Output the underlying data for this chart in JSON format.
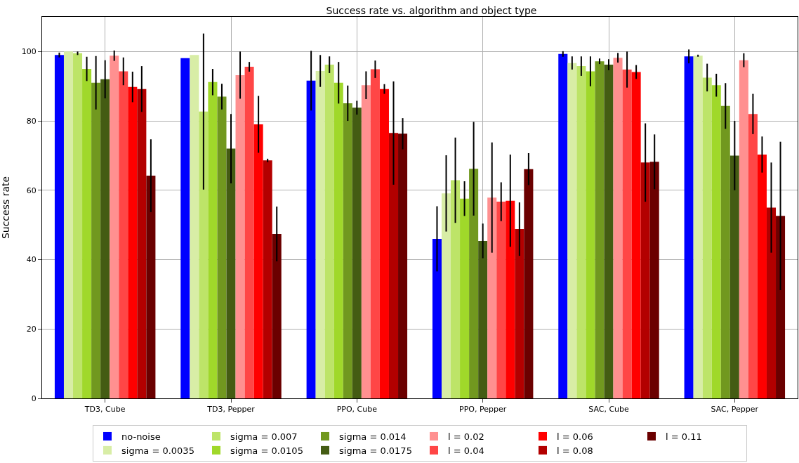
{
  "chart_data": {
    "type": "bar",
    "title": "Success rate vs. algorithm and object type",
    "ylabel": "Success rate",
    "categories": [
      "TD3, Cube",
      "TD3, Pepper",
      "PPO, Cube",
      "PPO, Pepper",
      "SAC, Cube",
      "SAC, Pepper"
    ],
    "ylim": [
      0,
      110
    ],
    "yticks": [
      0,
      20,
      40,
      60,
      80,
      100
    ],
    "grid": true,
    "legend": "bottom",
    "series": [
      {
        "name": "no-noise",
        "color": "#0000ff",
        "values": [
          99,
          98.1,
          91.6,
          46,
          99.3,
          98.6
        ],
        "errors": [
          0.7,
          0,
          8.6,
          9.4,
          0.8,
          2
        ]
      },
      {
        "name": "sigma = 0.0035",
        "color": "#d8eda6",
        "values": [
          100,
          99,
          94.4,
          59.1,
          96.7,
          98.8
        ],
        "errors": [
          0,
          0,
          4.6,
          11,
          1.9,
          0.3
        ]
      },
      {
        "name": "sigma = 0.007",
        "color": "#bde468",
        "values": [
          99.5,
          82.7,
          96.2,
          62.9,
          95.8,
          92.5
        ],
        "errors": [
          0.5,
          22.5,
          2.4,
          12.3,
          2.8,
          4
        ]
      },
      {
        "name": "sigma = 0.0105",
        "color": "#a0d82a",
        "values": [
          95,
          91.2,
          91,
          57.6,
          94.3,
          90.3
        ],
        "errors": [
          3.5,
          3.8,
          6,
          5,
          4.3,
          3.3
        ]
      },
      {
        "name": "sigma = 0.014",
        "color": "#71981f",
        "values": [
          91,
          87,
          85.1,
          66.2,
          97.2,
          84.3
        ],
        "errors": [
          7.7,
          3.7,
          5.1,
          13.5,
          0.8,
          6.6
        ]
      },
      {
        "name": "sigma = 0.0175",
        "color": "#445c13",
        "values": [
          92,
          72,
          83.8,
          45.4,
          96.2,
          70
        ],
        "errors": [
          5.5,
          10,
          2,
          5,
          1.6,
          10
        ]
      },
      {
        "name": "l = 0.02",
        "color": "#ff9090",
        "values": [
          98.8,
          93.2,
          90.3,
          57.9,
          98.2,
          97.5
        ],
        "errors": [
          1.5,
          6.8,
          4,
          15.9,
          1.4,
          2
        ]
      },
      {
        "name": "l = 0.04",
        "color": "#ff4646",
        "values": [
          94.3,
          95.6,
          94.9,
          56.7,
          94.8,
          82
        ],
        "errors": [
          4,
          1.4,
          2.5,
          5.6,
          5.2,
          5.8
        ]
      },
      {
        "name": "l = 0.06",
        "color": "#ff0000",
        "values": [
          89.8,
          79,
          89.2,
          57,
          94.1,
          70.3
        ],
        "errors": [
          4.4,
          8.2,
          1.4,
          13.3,
          2,
          5.2
        ]
      },
      {
        "name": "l = 0.08",
        "color": "#b30000",
        "values": [
          89.2,
          68.6,
          76.5,
          48.8,
          68,
          55
        ],
        "errors": [
          6.6,
          0.5,
          14.9,
          7.7,
          11.3,
          13
        ]
      },
      {
        "name": "l = 0.11",
        "color": "#6b0000",
        "values": [
          64.2,
          47.4,
          76.3,
          66.1,
          68.2,
          52.6
        ],
        "errors": [
          10.5,
          7.9,
          4.5,
          4.6,
          7.9,
          21.4
        ]
      }
    ]
  }
}
